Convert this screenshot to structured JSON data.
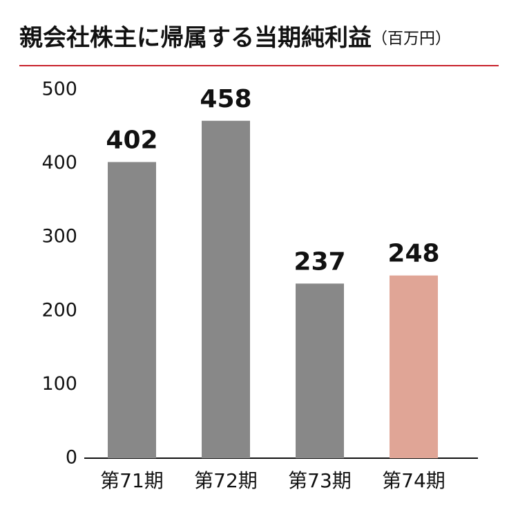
{
  "chart_data": {
    "type": "bar",
    "title": "親会社株主に帰属する当期純利益",
    "unit": "（百万円）",
    "categories": [
      "第71期",
      "第72期",
      "第73期",
      "第74期"
    ],
    "values": [
      402,
      458,
      237,
      248
    ],
    "colors": [
      "#888888",
      "#888888",
      "#888888",
      "#e0a596"
    ],
    "ylim": [
      0,
      500
    ],
    "yticks": [
      0,
      100,
      200,
      300,
      400,
      500
    ],
    "grid": false
  }
}
